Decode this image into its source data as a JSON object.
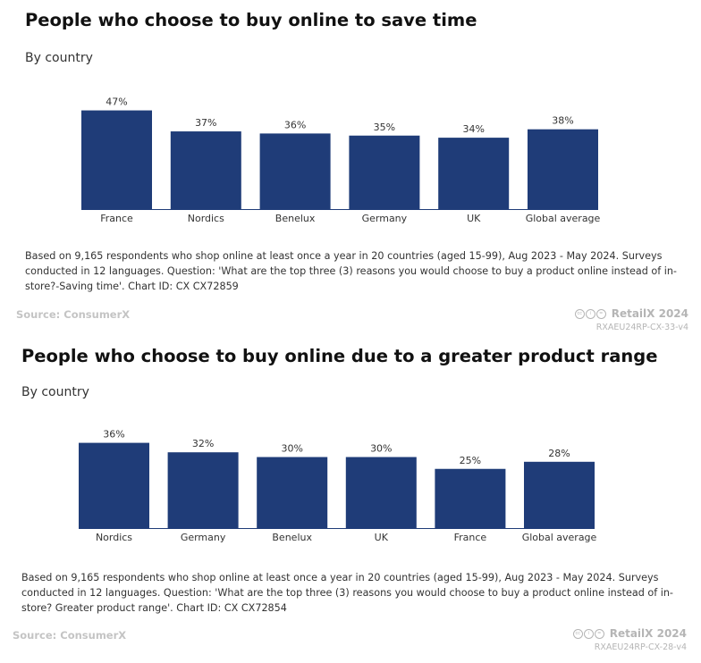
{
  "colors": {
    "bar": "#1f3c78",
    "muted": "#b5b5b5"
  },
  "chart_data": [
    {
      "type": "bar",
      "title": "People who choose to buy online to save time",
      "subtitle": "By country",
      "categories": [
        "France",
        "Nordics",
        "Benelux",
        "Germany",
        "UK",
        "Global average"
      ],
      "values": [
        47,
        37,
        36,
        35,
        34,
        38
      ],
      "value_labels": [
        "47%",
        "37%",
        "36%",
        "35%",
        "34%",
        "38%"
      ],
      "unit": "%",
      "ylim": [
        0,
        50
      ],
      "grid": false,
      "legend": "none",
      "note": "Based on 9,165 respondents who shop online at least once a year in 20 countries (aged 15-99), Aug 2023 - May 2024. Surveys conducted in 12 languages. Question: 'What are the top three (3) reasons you would choose to buy a product online instead of in-store?-Saving time'. Chart ID: CX CX72859",
      "source": "Source: ConsumerX",
      "brand": "RetailX 2024",
      "chart_code": "RXAEU24RP-CX-33-v4"
    },
    {
      "type": "bar",
      "title": "People who choose to buy online due to a greater product range",
      "subtitle": "By country",
      "categories": [
        "Nordics",
        "Germany",
        "Benelux",
        "UK",
        "France",
        "Global average"
      ],
      "values": [
        36,
        32,
        30,
        30,
        25,
        28
      ],
      "value_labels": [
        "36%",
        "32%",
        "30%",
        "30%",
        "25%",
        "28%"
      ],
      "unit": "%",
      "ylim": [
        0,
        40
      ],
      "grid": false,
      "legend": "none",
      "note": "Based on 9,165 respondents who shop online at least once a year in 20 countries (aged 15-99), Aug 2023 - May 2024. Surveys conducted in 12 languages. Question: 'What are the top three (3) reasons you would choose to buy a product online instead of in-store? Greater product range'. Chart ID: CX CX72854",
      "source": "Source: ConsumerX",
      "brand": "RetailX 2024",
      "chart_code": "RXAEU24RP-CX-28-v4"
    }
  ]
}
